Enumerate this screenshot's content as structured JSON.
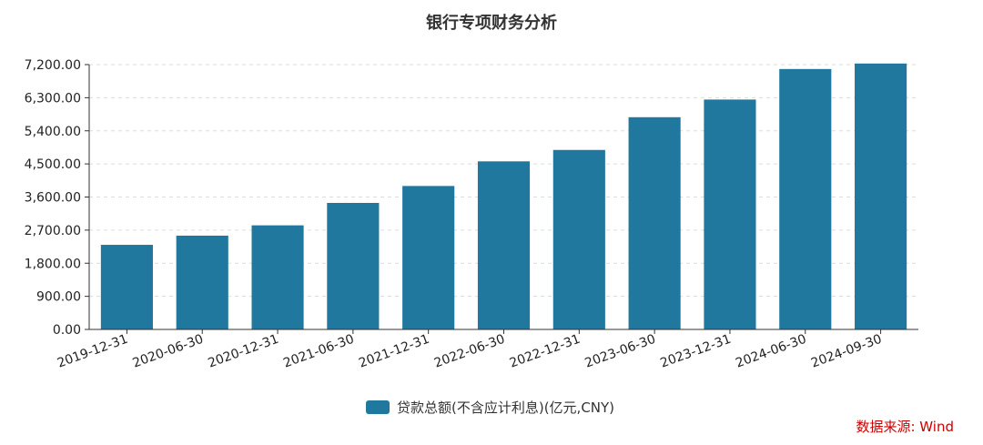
{
  "chart_data": {
    "type": "bar",
    "title": "银行专项财务分析",
    "categories": [
      "2019-12-31",
      "2020-06-30",
      "2020-12-31",
      "2021-06-30",
      "2021-12-31",
      "2022-06-30",
      "2022-12-31",
      "2023-06-30",
      "2023-12-31",
      "2024-06-30",
      "2024-09-30"
    ],
    "series": [
      {
        "name": "贷款总额(不含应计利息)(亿元,CNY)",
        "values": [
          2300,
          2550,
          2830,
          3440,
          3900,
          4570,
          4880,
          5770,
          6250,
          7080,
          7230
        ],
        "color": "#21789f"
      }
    ],
    "y_ticks": [
      "0.00",
      "900.00",
      "1,800.00",
      "2,700.00",
      "3,600.00",
      "4,500.00",
      "5,400.00",
      "6,300.00",
      "7,200.00"
    ],
    "ylim": [
      0,
      7200
    ],
    "xlabel": "",
    "ylabel": "",
    "grid": "horizontal dashed",
    "legend_position": "bottom-center",
    "source": "数据来源: Wind"
  }
}
